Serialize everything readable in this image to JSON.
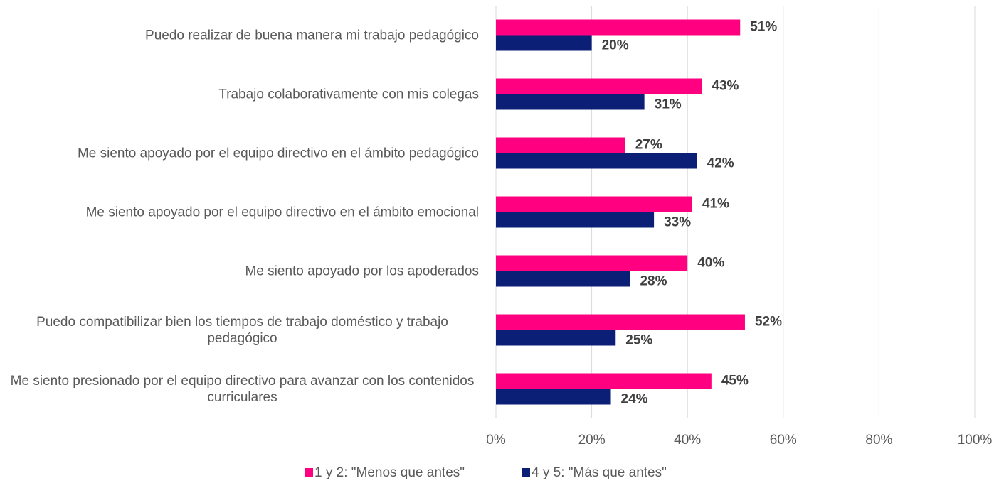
{
  "chart_data": {
    "type": "hbar",
    "categories": [
      "Puedo realizar de buena manera mi trabajo pedagógico",
      "Trabajo colaborativamente con mis colegas",
      "Me siento apoyado por el equipo directivo en el ámbito pedagógico",
      "Me siento apoyado por el equipo directivo en el ámbito emocional",
      "Me siento apoyado por los apoderados",
      "Puedo compatibilizar bien los tiempos de trabajo doméstico y trabajo pedagógico",
      "Me siento presionado por el equipo directivo para avanzar con los contenidos curriculares"
    ],
    "series": [
      {
        "name": "1 y 2: \"Menos que antes\"",
        "color": "#ff0080",
        "values": [
          51,
          43,
          27,
          41,
          40,
          52,
          45
        ],
        "value_labels": [
          "51%",
          "43%",
          "27%",
          "41%",
          "40%",
          "52%",
          "45%"
        ]
      },
      {
        "name": "4 y 5: \"Más que antes\"",
        "color": "#0c1f77",
        "values": [
          20,
          31,
          42,
          33,
          28,
          25,
          24
        ],
        "value_labels": [
          "20%",
          "31%",
          "42%",
          "33%",
          "28%",
          "25%",
          "24%"
        ]
      }
    ],
    "xlim": [
      0,
      100
    ],
    "xticks": [
      {
        "value": 0,
        "label": "0%"
      },
      {
        "value": 20,
        "label": "20%"
      },
      {
        "value": 40,
        "label": "40%"
      },
      {
        "value": 60,
        "label": "60%"
      },
      {
        "value": 80,
        "label": "80%"
      },
      {
        "value": 100,
        "label": "100%"
      }
    ],
    "grid": true,
    "legend": "bottom"
  }
}
